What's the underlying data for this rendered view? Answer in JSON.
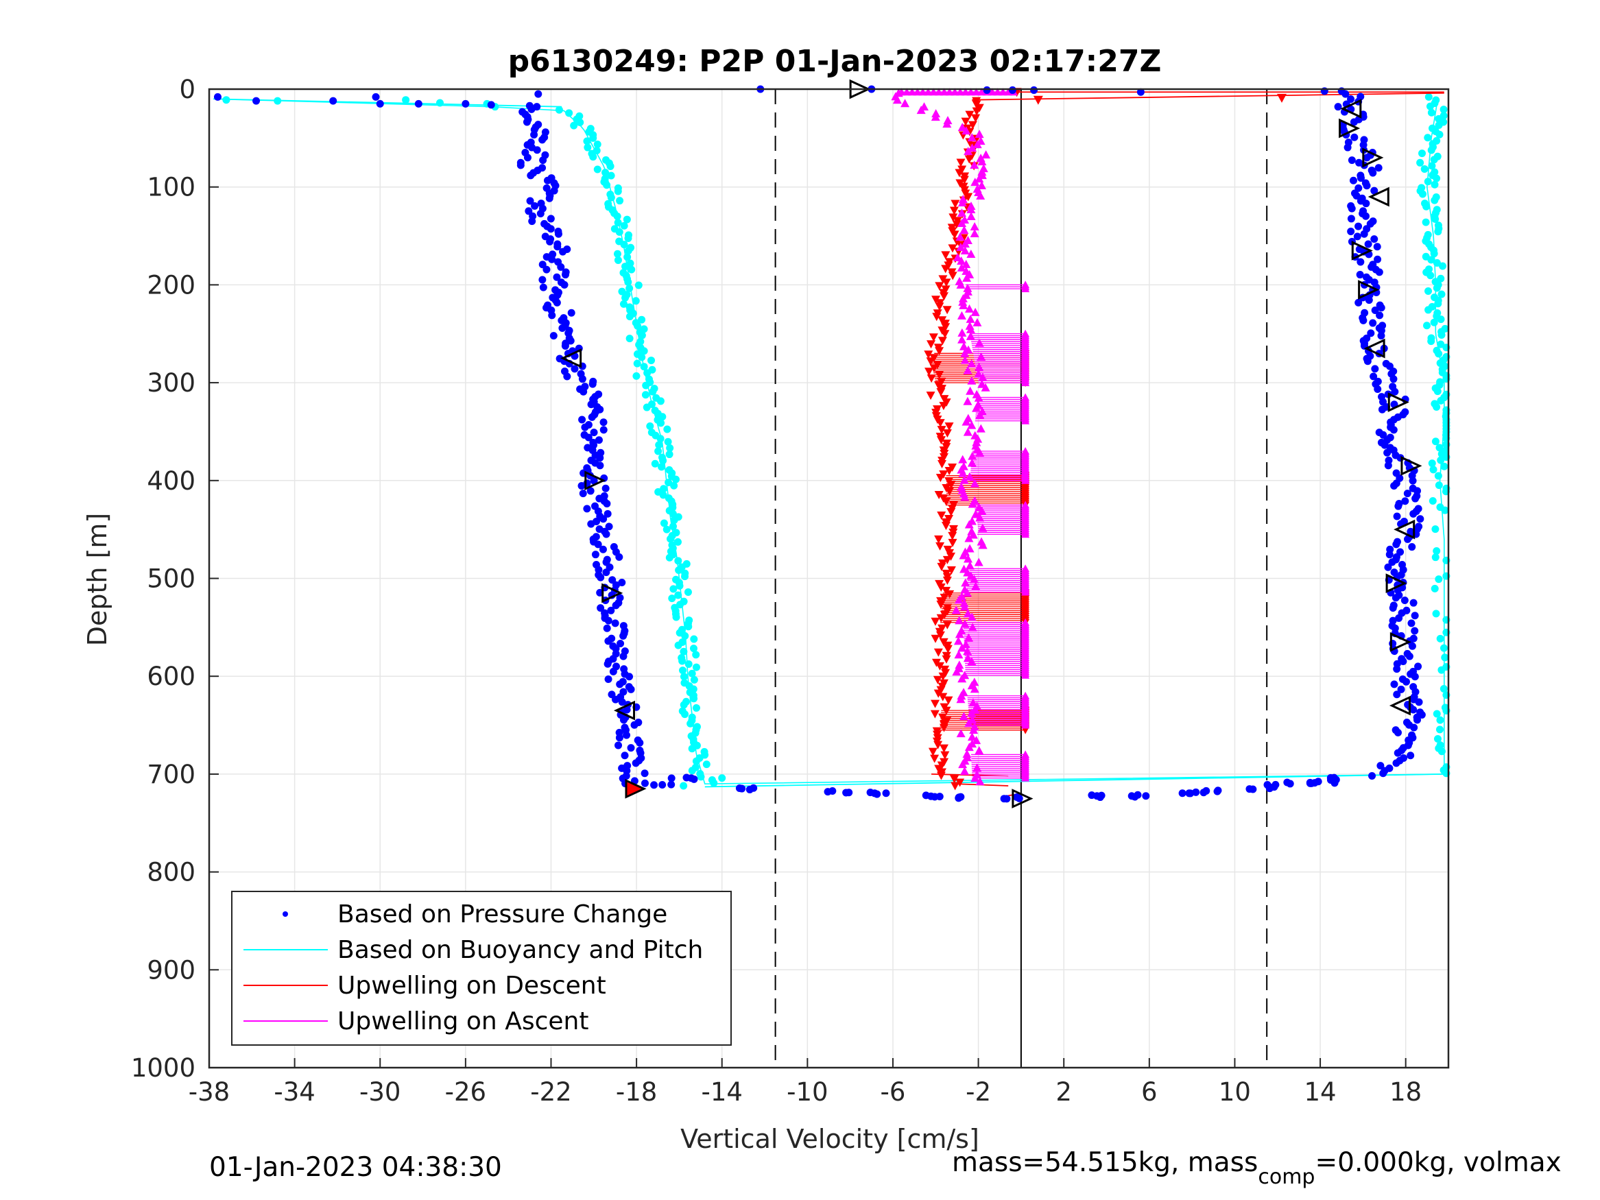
{
  "chart_data": {
    "type": "scatter",
    "title": "p6130249: P2P 01-Jan-2023 02:17:27Z",
    "xlabel": "Vertical Velocity [cm/s]",
    "ylabel": "Depth [m]",
    "xlim": [
      -38,
      20
    ],
    "ylim": [
      0,
      1000
    ],
    "y_reversed": true,
    "grid": true,
    "xticks": [
      -38,
      -34,
      -30,
      -26,
      -22,
      -18,
      -14,
      -10,
      -6,
      -2,
      2,
      6,
      10,
      14,
      18
    ],
    "xtick_labels": [
      "-38",
      "-34",
      "-30",
      "-26",
      "-22",
      "-18",
      "-14",
      "-10",
      "-6",
      "-2",
      "2",
      "6",
      "10",
      "14",
      "18"
    ],
    "yticks": [
      0,
      100,
      200,
      300,
      400,
      500,
      600,
      700,
      800,
      900,
      1000
    ],
    "ytick_labels": [
      "0",
      "100",
      "200",
      "300",
      "400",
      "500",
      "600",
      "700",
      "800",
      "900",
      "1000"
    ],
    "reference_lines": [
      {
        "x": -11.5,
        "style": "dashed"
      },
      {
        "x": 11.5,
        "style": "dashed"
      },
      {
        "x": 0,
        "style": "solid"
      }
    ],
    "legend_position": "bottom-left",
    "series": [
      {
        "name": "Based on Pressure Change",
        "color": "#0000ff",
        "marker": "dot",
        "descent": {
          "depth": [
            20,
            50,
            80,
            100,
            130,
            160,
            200,
            240,
            280,
            320,
            360,
            400,
            440,
            480,
            520,
            560,
            600,
            640,
            680,
            710
          ],
          "velocity": [
            -22.8,
            -22.5,
            -22.9,
            -22.3,
            -22.6,
            -21.8,
            -21.9,
            -21.5,
            -21.0,
            -20.0,
            -20.1,
            -20.0,
            -19.8,
            -19.3,
            -19.2,
            -19.1,
            -18.8,
            -18.5,
            -18.3,
            -18.1
          ]
        },
        "ascent": {
          "depth": [
            700,
            680,
            640,
            600,
            560,
            520,
            480,
            440,
            400,
            360,
            320,
            280,
            240,
            200,
            160,
            120,
            80,
            50,
            20
          ],
          "velocity": [
            16.5,
            17.8,
            18.3,
            18.0,
            17.9,
            17.8,
            17.6,
            18.1,
            18.0,
            17.3,
            17.5,
            16.8,
            16.4,
            16.3,
            16.1,
            15.9,
            16.2,
            15.7,
            15.4
          ]
        },
        "surface_points": {
          "depth": [
            8,
            8,
            12,
            12,
            15,
            15,
            15,
            16,
            17,
            5,
            0,
            3
          ],
          "velocity": [
            -37.6,
            -30.2,
            -35.8,
            -32.2,
            -30.0,
            -28.2,
            -26.0,
            -24.8,
            -23.0,
            -22.6,
            -7.0,
            5.6
          ]
        },
        "bottom_points": {
          "depth": [
            705,
            710,
            715,
            718,
            720,
            722,
            724,
            724,
            723,
            722,
            720,
            718,
            715,
            712,
            710,
            708,
            705
          ],
          "velocity": [
            -16.0,
            -17.0,
            -12.5,
            -8.5,
            -7.0,
            -4.5,
            -3.0,
            -0.5,
            4.0,
            5.5,
            7.5,
            9.0,
            11.0,
            12.0,
            13.0,
            14.0,
            15.0
          ]
        }
      },
      {
        "name": "Based on Buoyancy and Pitch",
        "color": "#00ffff",
        "marker": "dot",
        "descent": {
          "depth": [
            10,
            20,
            40,
            80,
            120,
            160,
            200,
            240,
            280,
            320,
            360,
            400,
            440,
            480,
            520,
            560,
            600,
            640,
            680,
            710
          ],
          "velocity": [
            -37.8,
            -21.5,
            -20.5,
            -19.5,
            -19.0,
            -18.6,
            -18.3,
            -18.0,
            -17.7,
            -17.3,
            -16.8,
            -16.6,
            -16.4,
            -16.1,
            -15.9,
            -15.7,
            -15.6,
            -15.4,
            -15.2,
            -14.8
          ]
        },
        "ascent": {
          "depth": [
            700,
            640,
            580,
            520,
            460,
            400,
            340,
            300,
            250,
            200,
            150,
            100,
            50,
            10
          ],
          "velocity": [
            19.8,
            19.8,
            19.8,
            19.8,
            19.8,
            19.6,
            19.8,
            19.8,
            19.4,
            19.4,
            19.3,
            19.0,
            19.2,
            19.5
          ]
        }
      },
      {
        "name": "Upwelling on Descent",
        "color": "#ff0000",
        "marker": "triangle-down",
        "depth": [
          10,
          50,
          100,
          150,
          200,
          250,
          280,
          300,
          350,
          400,
          450,
          500,
          550,
          600,
          650,
          700,
          710
        ],
        "velocity": [
          -2.2,
          -2.4,
          -2.6,
          -3.0,
          -3.6,
          -3.8,
          -4.2,
          -4.0,
          -3.6,
          -3.5,
          -3.5,
          -3.6,
          -3.8,
          -3.6,
          -3.8,
          -3.9,
          -3.0
        ]
      },
      {
        "name": "Upwelling on Ascent",
        "color": "#ff00ff",
        "marker": "triangle-up",
        "depth": [
          10,
          50,
          100,
          150,
          200,
          250,
          300,
          350,
          400,
          450,
          500,
          550,
          600,
          650,
          700
        ],
        "velocity": [
          -5.5,
          -2.0,
          -2.2,
          -2.5,
          -2.6,
          -2.4,
          -2.0,
          -2.2,
          -2.4,
          -2.0,
          -2.5,
          -2.7,
          -2.6,
          -2.4,
          -2.3
        ]
      }
    ],
    "markers": {
      "depth": [
        0,
        275,
        400,
        515,
        635,
        715,
        725,
        20,
        40,
        70,
        110,
        165,
        205,
        265,
        320,
        385,
        450,
        505,
        565,
        630
      ],
      "velocity": [
        -7.6,
        -21.0,
        -20.0,
        -19.2,
        -18.5,
        -18.1,
        0,
        15.5,
        15.3,
        16.4,
        16.8,
        15.9,
        16.2,
        16.6,
        17.6,
        18.2,
        18.0,
        17.5,
        17.7,
        17.8
      ]
    },
    "legend": [
      {
        "label": "Based on Pressure Change",
        "color": "#0000ff",
        "kind": "dot"
      },
      {
        "label": "Based on Buoyancy and Pitch",
        "color": "#00ffff",
        "kind": "line"
      },
      {
        "label": "Upwelling on Descent",
        "color": "#ff0000",
        "kind": "line"
      },
      {
        "label": "Upwelling on Ascent",
        "color": "#ff00ff",
        "kind": "line"
      }
    ]
  },
  "footer": {
    "timestamp": "01-Jan-2023 04:38:30",
    "mass_prefix": "mass=54.515kg, mass",
    "mass_sub": "comp",
    "mass_suffix": "=0.000kg, volmax"
  }
}
